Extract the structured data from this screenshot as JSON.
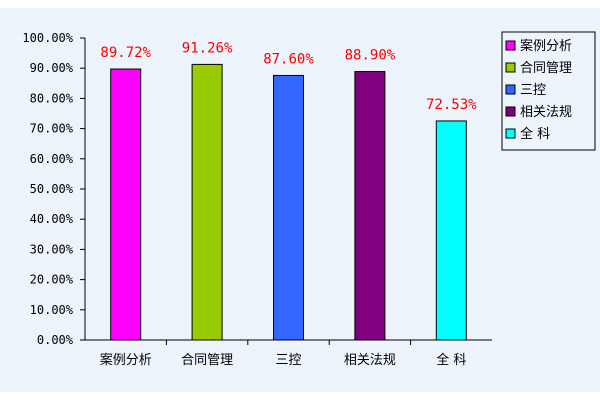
{
  "chart_data": {
    "type": "bar",
    "categories": [
      "案例分析",
      "合同管理",
      "三控",
      "相关法规",
      "全 科"
    ],
    "values": [
      89.72,
      91.26,
      87.6,
      88.9,
      72.53
    ],
    "data_labels": [
      "89.72%",
      "91.26%",
      "87.60%",
      "88.90%",
      "72.53%"
    ],
    "colors": [
      "#ff00ff",
      "#99cc00",
      "#3366ff",
      "#800080",
      "#00ffff"
    ],
    "ylim": [
      0,
      100
    ],
    "yticks": [
      0,
      10,
      20,
      30,
      40,
      50,
      60,
      70,
      80,
      90,
      100
    ],
    "ytick_labels": [
      "0.00%",
      "10.00%",
      "20.00%",
      "30.00%",
      "40.00%",
      "50.00%",
      "60.00%",
      "70.00%",
      "80.00%",
      "90.00%",
      "100.00%"
    ],
    "legend": {
      "placement": "right",
      "entries": [
        "案例分析",
        "合同管理",
        "三控",
        "相关法规",
        "全 科"
      ]
    },
    "data_label_color": "#ff0000",
    "grid": false,
    "title": "",
    "xlabel": "",
    "ylabel": ""
  }
}
